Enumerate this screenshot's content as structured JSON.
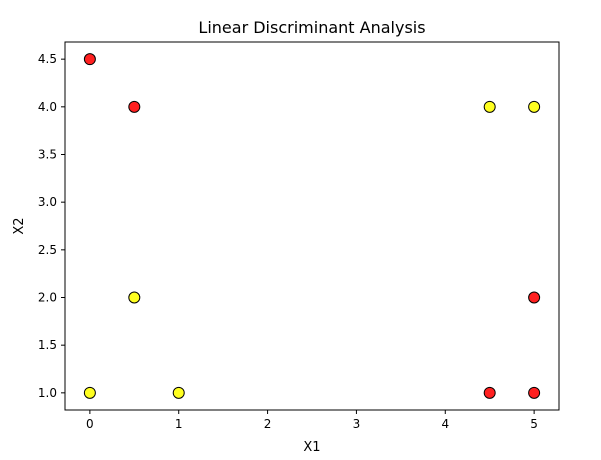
{
  "chart_data": {
    "type": "scatter",
    "title": "Linear Discriminant Analysis",
    "xlabel": "X1",
    "ylabel": "X2",
    "xlim": [
      -0.28,
      5.28
    ],
    "ylim": [
      0.82,
      4.68
    ],
    "grid": false,
    "x_ticks": [
      0,
      1,
      2,
      3,
      4,
      5
    ],
    "y_ticks": [
      1.0,
      1.5,
      2.0,
      2.5,
      3.0,
      3.5,
      4.0,
      4.5
    ],
    "x_tick_labels": [
      "0",
      "1",
      "2",
      "3",
      "4",
      "5"
    ],
    "y_tick_labels": [
      "1.0",
      "1.5",
      "2.0",
      "2.5",
      "3.0",
      "3.5",
      "4.0",
      "4.5"
    ],
    "points": [
      {
        "x": 0,
        "y": 4.5,
        "color": "#ff2020"
      },
      {
        "x": 0.5,
        "y": 4.0,
        "color": "#ff2020"
      },
      {
        "x": 0.5,
        "y": 2.0,
        "color": "#ffff20"
      },
      {
        "x": 0,
        "y": 1.0,
        "color": "#ffff20"
      },
      {
        "x": 1,
        "y": 1.0,
        "color": "#ffff20"
      },
      {
        "x": 4.5,
        "y": 4.0,
        "color": "#ffff20"
      },
      {
        "x": 5,
        "y": 4.0,
        "color": "#ffff20"
      },
      {
        "x": 5,
        "y": 2.0,
        "color": "#ff2020"
      },
      {
        "x": 4.5,
        "y": 1.0,
        "color": "#ff2020"
      },
      {
        "x": 5,
        "y": 1.0,
        "color": "#ff2020"
      }
    ],
    "marker_edge_color": "#000000"
  }
}
